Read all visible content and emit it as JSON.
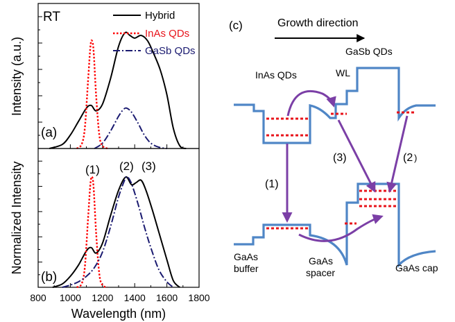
{
  "figure": {
    "panel_a_label": "(a)",
    "panel_b_label": "(b)",
    "panel_c_label": "(c)",
    "temp_label": "RT",
    "ylabel_a": "Intensity (a.u.)",
    "ylabel_b": "Normalized Intensity",
    "xlabel": "Wavelength (nm)",
    "peak_labels": [
      "(1)",
      "(2)",
      "(3)"
    ]
  },
  "colors": {
    "hybrid": "#000000",
    "inas": "#ff0000",
    "gasb": "#1a1a70",
    "band": "#4f86c6",
    "arrow": "#7b3fa6",
    "levels": "#e8141b"
  },
  "chart_data": [
    {
      "type": "line",
      "panel": "(a)",
      "xlabel": "",
      "ylabel": "Intensity (a.u.)",
      "xlim": [
        800,
        1800
      ],
      "ylim": [
        0,
        1.0
      ],
      "xticks": [
        800,
        1000,
        1200,
        1400,
        1600,
        1800
      ],
      "legend": [
        "Hybrid",
        "InAs QDs",
        "GaSb QDs"
      ],
      "legend_position": "top-right",
      "series": [
        {
          "name": "Hybrid",
          "style": "solid",
          "x": [
            870,
            950,
            1000,
            1050,
            1100,
            1130,
            1160,
            1200,
            1250,
            1300,
            1340,
            1370,
            1400,
            1440,
            1480,
            1520,
            1560,
            1600,
            1640,
            1680,
            1720
          ],
          "y": [
            0.0,
            0.03,
            0.1,
            0.2,
            0.3,
            0.32,
            0.28,
            0.33,
            0.52,
            0.76,
            0.86,
            0.84,
            0.82,
            0.84,
            0.8,
            0.7,
            0.58,
            0.4,
            0.15,
            0.02,
            0.0
          ]
        },
        {
          "name": "InAs QDs",
          "style": "dotted",
          "x": [
            1040,
            1070,
            1090,
            1110,
            1125,
            1135,
            1145,
            1160,
            1180,
            1200,
            1230
          ],
          "y": [
            0.0,
            0.03,
            0.15,
            0.5,
            0.76,
            0.8,
            0.72,
            0.4,
            0.1,
            0.02,
            0.0
          ]
        },
        {
          "name": "GaSb QDs",
          "style": "dashdot",
          "x": [
            1150,
            1200,
            1250,
            1300,
            1330,
            1350,
            1380,
            1420,
            1460,
            1500,
            1550,
            1600
          ],
          "y": [
            0.0,
            0.04,
            0.13,
            0.24,
            0.29,
            0.3,
            0.27,
            0.19,
            0.1,
            0.04,
            0.01,
            0.0
          ]
        }
      ]
    },
    {
      "type": "line",
      "panel": "(b)",
      "xlabel": "Wavelength (nm)",
      "ylabel": "Normalized Intensity",
      "xlim": [
        800,
        1800
      ],
      "ylim": [
        0,
        1.0
      ],
      "xticks": [
        800,
        1000,
        1200,
        1400,
        1600,
        1800
      ],
      "xtick_labels": [
        "800",
        "1000",
        "1200",
        "1400",
        "1600",
        "1800"
      ],
      "annotations": [
        "(1)",
        "(2)",
        "(3)"
      ],
      "series": [
        {
          "name": "Hybrid",
          "style": "solid",
          "x": [
            890,
            950,
            1000,
            1050,
            1100,
            1130,
            1160,
            1200,
            1250,
            1300,
            1345,
            1380,
            1410,
            1440,
            1470,
            1510,
            1550,
            1600,
            1640,
            1680
          ],
          "y": [
            0.0,
            0.03,
            0.1,
            0.2,
            0.33,
            0.36,
            0.31,
            0.4,
            0.65,
            0.88,
            1.0,
            0.93,
            0.95,
            0.97,
            0.88,
            0.7,
            0.5,
            0.25,
            0.06,
            0.0
          ]
        },
        {
          "name": "InAs QDs",
          "style": "dotted",
          "x": [
            1040,
            1070,
            1090,
            1110,
            1125,
            1135,
            1145,
            1160,
            1180,
            1200,
            1230
          ],
          "y": [
            0.0,
            0.03,
            0.18,
            0.62,
            0.94,
            1.0,
            0.9,
            0.5,
            0.12,
            0.02,
            0.0
          ]
        },
        {
          "name": "GaSb QDs",
          "style": "dashdot",
          "x": [
            950,
            1000,
            1050,
            1100,
            1150,
            1200,
            1250,
            1300,
            1340,
            1355,
            1380,
            1420,
            1460,
            1500,
            1550,
            1600,
            1640
          ],
          "y": [
            0.0,
            0.02,
            0.05,
            0.1,
            0.18,
            0.32,
            0.55,
            0.82,
            0.98,
            1.0,
            0.94,
            0.76,
            0.55,
            0.36,
            0.16,
            0.05,
            0.0
          ]
        }
      ]
    }
  ],
  "diagram": {
    "title": "Growth direction",
    "labels": {
      "gasb_qds": "GaSb QDs",
      "inas_qds": "InAs QDs",
      "wl": "WL",
      "path1": "(1)",
      "path2": "(2",
      "path2_tail": ")",
      "path3": "(3)",
      "gaas_buffer_1": "GaAs",
      "gaas_buffer_2": "buffer",
      "gaas_spacer_1": "GaAs",
      "gaas_spacer_2": "spacer",
      "gaas_cap": "GaAs cap"
    }
  }
}
